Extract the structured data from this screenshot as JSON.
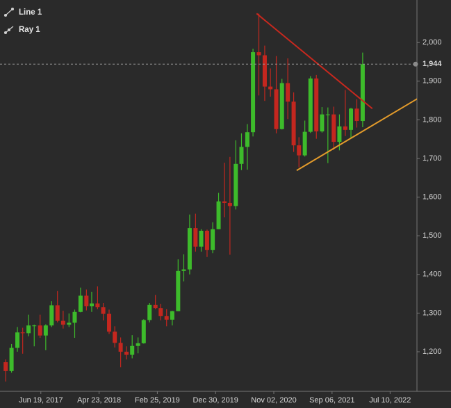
{
  "chart_data": {
    "type": "candlestick",
    "up_color": "#3dbb2b",
    "down_color": "#c4271f",
    "xlim": [
      "2016-11-15",
      "2022-11-29"
    ],
    "xticks": [
      {
        "value": "2017-06-19",
        "label": "Jun 19, 2017"
      },
      {
        "value": "2018-04-23",
        "label": "Apr 23, 2018"
      },
      {
        "value": "2019-02-25",
        "label": "Feb 25, 2019"
      },
      {
        "value": "2019-12-30",
        "label": "Dec 30, 2019"
      },
      {
        "value": "2020-11-02",
        "label": "Nov 02, 2020"
      },
      {
        "value": "2021-09-06",
        "label": "Sep 06, 2021"
      },
      {
        "value": "2022-07-10",
        "label": "Jul 10, 2022"
      }
    ],
    "ylim": [
      1103,
      2101
    ],
    "yticks": [
      {
        "value": 1200,
        "label": "1,200"
      },
      {
        "value": 1300,
        "label": "1,300"
      },
      {
        "value": 1400,
        "label": "1,400"
      },
      {
        "value": 1500,
        "label": "1,500"
      },
      {
        "value": 1600,
        "label": "1,600"
      },
      {
        "value": 1700,
        "label": "1,700"
      },
      {
        "value": 1800,
        "label": "1,800"
      },
      {
        "value": 1900,
        "label": "1,900"
      },
      {
        "value": 2000,
        "label": "2,000"
      }
    ],
    "last_price": {
      "value": 1944,
      "label": "1,944"
    },
    "x": [
      "2016-12-15",
      "2017-01-15",
      "2017-02-15",
      "2017-03-15",
      "2017-04-15",
      "2017-05-15",
      "2017-06-15",
      "2017-07-15",
      "2017-08-15",
      "2017-09-15",
      "2017-10-15",
      "2017-11-15",
      "2017-12-15",
      "2018-01-15",
      "2018-02-15",
      "2018-03-15",
      "2018-04-15",
      "2018-05-15",
      "2018-06-15",
      "2018-07-15",
      "2018-08-15",
      "2018-09-15",
      "2018-10-15",
      "2018-11-15",
      "2018-12-15",
      "2019-01-15",
      "2019-02-15",
      "2019-03-15",
      "2019-04-15",
      "2019-05-15",
      "2019-06-15",
      "2019-07-15",
      "2019-08-15",
      "2019-09-15",
      "2019-10-15",
      "2019-11-15",
      "2019-12-15",
      "2020-01-15",
      "2020-02-15",
      "2020-03-15",
      "2020-04-15",
      "2020-05-15",
      "2020-06-15",
      "2020-07-15",
      "2020-08-15",
      "2020-09-15",
      "2020-10-15",
      "2020-11-15",
      "2020-12-15",
      "2021-01-15",
      "2021-02-15",
      "2021-03-15",
      "2021-04-15",
      "2021-05-15",
      "2021-06-15",
      "2021-07-15",
      "2021-08-15",
      "2021-09-15",
      "2021-10-15",
      "2021-11-15",
      "2021-12-15",
      "2022-01-15",
      "2022-02-15"
    ],
    "open": [
      1173,
      1150,
      1210,
      1250,
      1248,
      1268,
      1268,
      1242,
      1268,
      1320,
      1280,
      1270,
      1275,
      1303,
      1345,
      1318,
      1325,
      1315,
      1298,
      1252,
      1223,
      1200,
      1192,
      1215,
      1222,
      1282,
      1321,
      1313,
      1292,
      1283,
      1305,
      1409,
      1413,
      1520,
      1472,
      1513,
      1463,
      1517,
      1589,
      1585,
      1577,
      1686,
      1730,
      1768,
      1975,
      1967,
      1886,
      1879,
      1776,
      1895,
      1847,
      1734,
      1708,
      1769,
      1907,
      1770,
      1814,
      1814,
      1743,
      1783,
      1774,
      1829,
      1797
    ],
    "high": [
      1180,
      1220,
      1264,
      1262,
      1296,
      1270,
      1296,
      1271,
      1331,
      1357,
      1306,
      1299,
      1309,
      1366,
      1361,
      1355,
      1369,
      1326,
      1309,
      1266,
      1237,
      1214,
      1243,
      1237,
      1284,
      1326,
      1347,
      1324,
      1310,
      1306,
      1439,
      1452,
      1555,
      1557,
      1517,
      1516,
      1535,
      1611,
      1689,
      1704,
      1747,
      1765,
      1789,
      1984,
      2075,
      1992,
      1933,
      1965,
      1906,
      1959,
      1871,
      1755,
      1798,
      1913,
      1916,
      1833,
      1832,
      1834,
      1814,
      1877,
      1831,
      1853,
      1974
    ],
    "low": [
      1123,
      1146,
      1200,
      1195,
      1240,
      1214,
      1236,
      1204,
      1264,
      1276,
      1260,
      1264,
      1236,
      1302,
      1307,
      1303,
      1310,
      1281,
      1246,
      1211,
      1160,
      1180,
      1183,
      1196,
      1221,
      1276,
      1310,
      1281,
      1266,
      1268,
      1305,
      1382,
      1400,
      1459,
      1459,
      1445,
      1455,
      1517,
      1548,
      1451,
      1568,
      1670,
      1671,
      1757,
      1863,
      1849,
      1860,
      1765,
      1775,
      1802,
      1717,
      1677,
      1705,
      1766,
      1751,
      1767,
      1688,
      1722,
      1721,
      1758,
      1753,
      1780,
      1781
    ],
    "close": [
      1150,
      1210,
      1250,
      1248,
      1268,
      1268,
      1242,
      1268,
      1320,
      1280,
      1270,
      1275,
      1303,
      1345,
      1318,
      1325,
      1315,
      1298,
      1252,
      1223,
      1200,
      1192,
      1215,
      1222,
      1282,
      1321,
      1313,
      1292,
      1283,
      1305,
      1409,
      1413,
      1520,
      1472,
      1513,
      1463,
      1517,
      1589,
      1585,
      1577,
      1686,
      1730,
      1768,
      1975,
      1967,
      1886,
      1879,
      1776,
      1895,
      1847,
      1734,
      1708,
      1769,
      1907,
      1770,
      1814,
      1814,
      1743,
      1783,
      1774,
      1829,
      1797,
      1944
    ],
    "drawings": [
      {
        "name": "Line 1",
        "color": "#c8281e",
        "ray": false,
        "x": [
          "2020-08-03",
          "2022-04-07"
        ],
        "y": [
          2075,
          1829
        ]
      },
      {
        "name": "Ray 1",
        "color": "#e39b2b",
        "ray": true,
        "x": [
          "2021-03-03",
          "2022-11-29"
        ],
        "y": [
          1669,
          1854
        ]
      }
    ]
  }
}
